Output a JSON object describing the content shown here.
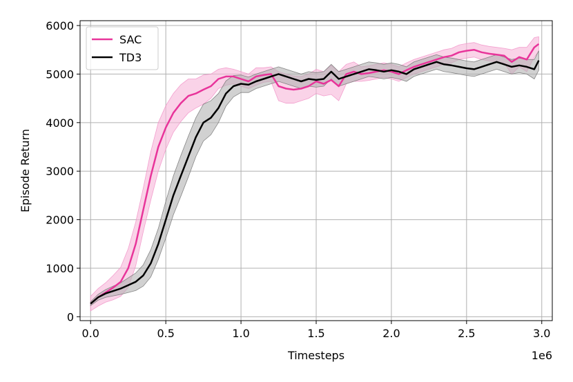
{
  "chart_data": {
    "type": "line",
    "xlabel": "Timesteps",
    "ylabel": "Episode Return",
    "x_offset_label": "1e6",
    "xlim": [
      -0.07,
      3.07
    ],
    "ylim": [
      -80,
      6100
    ],
    "xticks": [
      0.0,
      0.5,
      1.0,
      1.5,
      2.0,
      2.5,
      3.0
    ],
    "xtick_labels": [
      "0.0",
      "0.5",
      "1.0",
      "1.5",
      "2.0",
      "2.5",
      "3.0"
    ],
    "yticks": [
      0,
      1000,
      2000,
      3000,
      4000,
      5000,
      6000
    ],
    "ytick_labels": [
      "0",
      "1000",
      "2000",
      "3000",
      "4000",
      "5000",
      "6000"
    ],
    "grid": true,
    "legend_position": "top-left",
    "x": [
      0.0,
      0.05,
      0.1,
      0.15,
      0.2,
      0.25,
      0.3,
      0.35,
      0.4,
      0.45,
      0.5,
      0.55,
      0.6,
      0.65,
      0.7,
      0.75,
      0.8,
      0.85,
      0.9,
      0.95,
      1.0,
      1.05,
      1.1,
      1.15,
      1.2,
      1.25,
      1.3,
      1.35,
      1.4,
      1.45,
      1.5,
      1.55,
      1.6,
      1.65,
      1.7,
      1.75,
      1.8,
      1.85,
      1.9,
      1.95,
      2.0,
      2.05,
      2.1,
      2.15,
      2.2,
      2.25,
      2.3,
      2.35,
      2.4,
      2.45,
      2.5,
      2.55,
      2.6,
      2.65,
      2.7,
      2.75,
      2.8,
      2.85,
      2.9,
      2.95,
      2.98
    ],
    "series": [
      {
        "name": "SAC",
        "color": "#e8349a",
        "values": [
          270,
          400,
          500,
          600,
          720,
          1000,
          1500,
          2200,
          2900,
          3500,
          3900,
          4200,
          4400,
          4550,
          4600,
          4680,
          4750,
          4900,
          4950,
          4950,
          4900,
          4850,
          4950,
          4980,
          5000,
          4750,
          4700,
          4680,
          4700,
          4750,
          4850,
          4800,
          4880,
          4750,
          5000,
          5050,
          5000,
          5020,
          5050,
          5080,
          5050,
          5000,
          5080,
          5150,
          5200,
          5250,
          5300,
          5350,
          5380,
          5450,
          5480,
          5500,
          5450,
          5420,
          5400,
          5380,
          5250,
          5350,
          5300,
          5550,
          5620
        ],
        "band": [
          150,
          180,
          200,
          250,
          300,
          400,
          450,
          450,
          500,
          500,
          450,
          400,
          380,
          350,
          300,
          300,
          250,
          200,
          180,
          150,
          150,
          150,
          180,
          150,
          150,
          300,
          300,
          280,
          250,
          250,
          250,
          250,
          300,
          300,
          200,
          200,
          150,
          150,
          150,
          150,
          150,
          150,
          150,
          150,
          150,
          150,
          150,
          150,
          150,
          150,
          150,
          150,
          150,
          150,
          150,
          150,
          250,
          200,
          250,
          200,
          150
        ]
      },
      {
        "name": "TD3",
        "color": "#000000",
        "values": [
          270,
          400,
          480,
          530,
          580,
          650,
          720,
          850,
          1100,
          1500,
          2000,
          2500,
          2900,
          3300,
          3700,
          4000,
          4100,
          4300,
          4600,
          4750,
          4800,
          4780,
          4850,
          4900,
          4950,
          5000,
          4950,
          4900,
          4850,
          4900,
          4880,
          4900,
          5050,
          4900,
          4950,
          5000,
          5050,
          5100,
          5080,
          5050,
          5080,
          5050,
          5000,
          5100,
          5150,
          5200,
          5250,
          5200,
          5180,
          5150,
          5120,
          5100,
          5150,
          5200,
          5250,
          5200,
          5150,
          5180,
          5150,
          5100,
          5280
        ]
      }
    ]
  }
}
